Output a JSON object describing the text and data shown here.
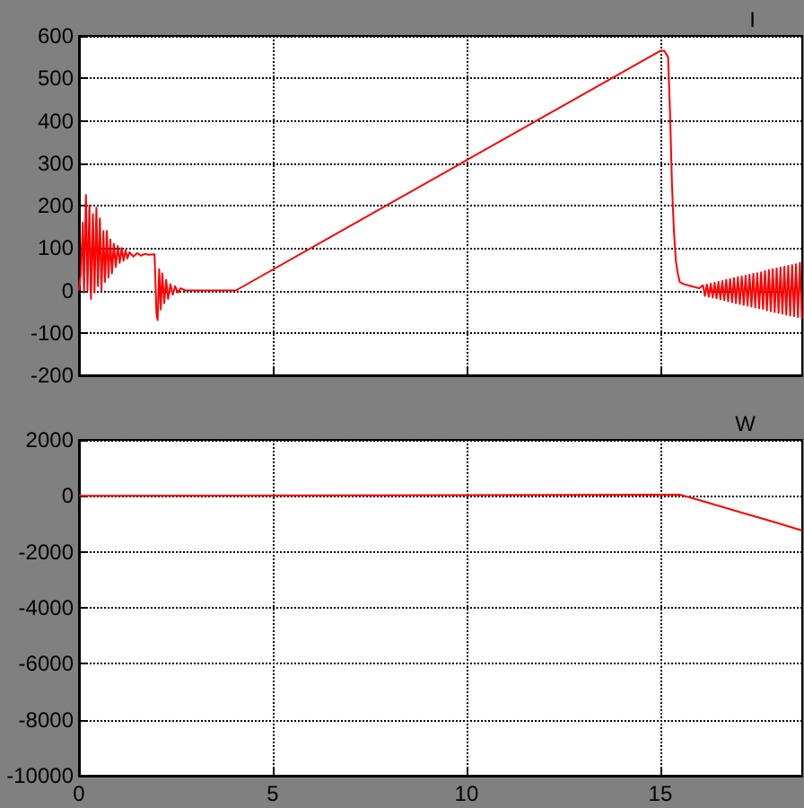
{
  "chart_data": [
    {
      "type": "line",
      "title": "I",
      "color": "#ff0000",
      "marker": "none",
      "grid": true,
      "tick_labels": "y",
      "x": [
        0,
        0.05,
        0.1,
        0.13,
        0.18,
        0.22,
        0.27,
        0.31,
        0.36,
        0.4,
        0.45,
        0.49,
        0.54,
        0.58,
        0.63,
        0.67,
        0.72,
        0.76,
        0.81,
        0.85,
        0.9,
        0.95,
        1.0,
        1.05,
        1.1,
        1.15,
        1.2,
        1.25,
        1.3,
        1.4,
        1.5,
        1.6,
        1.7,
        1.8,
        1.95,
        2.0,
        2.03,
        2.07,
        2.11,
        2.15,
        2.2,
        2.25,
        2.3,
        2.36,
        2.42,
        2.48,
        2.55,
        2.62,
        2.75,
        4.05,
        15.0,
        15.1,
        15.2,
        15.25,
        15.3,
        15.35,
        15.4,
        15.45,
        15.5,
        15.6,
        15.8,
        16.0,
        16.1,
        16.15,
        16.2,
        16.25,
        16.3,
        16.35,
        16.4,
        16.45,
        16.5,
        16.55,
        16.6,
        16.65,
        16.7,
        16.75,
        16.8,
        16.85,
        16.9,
        16.95,
        17.0,
        17.05,
        17.1,
        17.15,
        17.2,
        17.25,
        17.3,
        17.35,
        17.4,
        17.45,
        17.5,
        17.55,
        17.6,
        17.65,
        17.7,
        17.75,
        17.8,
        17.85,
        17.9,
        17.95,
        18.0,
        18.05,
        18.1,
        18.15,
        18.2,
        18.25,
        18.3,
        18.35,
        18.4,
        18.45,
        18.5,
        18.55,
        18.6,
        18.65
      ],
      "values": [
        0,
        40,
        160,
        -5,
        225,
        0,
        200,
        -20,
        180,
        -5,
        195,
        10,
        170,
        0,
        140,
        20,
        140,
        30,
        120,
        40,
        110,
        55,
        105,
        65,
        100,
        70,
        95,
        75,
        90,
        80,
        88,
        82,
        86,
        84,
        85,
        -55,
        -70,
        50,
        -45,
        40,
        -30,
        25,
        -20,
        15,
        -10,
        10,
        -5,
        5,
        0,
        0,
        565,
        565,
        550,
        420,
        250,
        140,
        70,
        40,
        20,
        15,
        10,
        5,
        12,
        -13,
        14,
        -15,
        16,
        -17,
        18,
        -19,
        20,
        -21,
        22,
        -23,
        25,
        -26,
        27,
        -28,
        29,
        -30,
        31,
        -32,
        33,
        -34,
        35,
        -36,
        37,
        -38,
        39,
        -40,
        41,
        -42,
        43,
        -44,
        46,
        -47,
        48,
        -49,
        50,
        -51,
        52,
        -53,
        54,
        -55,
        56,
        -57,
        58,
        -59,
        60,
        -61,
        62,
        -63,
        65,
        -66
      ],
      "xlim": [
        0,
        18.66
      ],
      "xticks": [
        0,
        5,
        10,
        15
      ],
      "ylim": [
        -200,
        600
      ],
      "yticks": [
        -200,
        -100,
        0,
        100,
        200,
        300,
        400,
        500,
        600
      ]
    },
    {
      "type": "line",
      "title": "W",
      "color": "#ff0000",
      "marker": "none",
      "grid": true,
      "x": [
        0,
        0.8,
        0.8,
        15.5,
        16.0,
        17.0,
        18.0,
        18.66
      ],
      "values": [
        0,
        0,
        40,
        40,
        -150,
        -560,
        -960,
        -1240
      ],
      "xlim": [
        0,
        18.66
      ],
      "xticks": [
        0,
        5,
        10,
        15
      ],
      "ylim": [
        -10000,
        2000
      ],
      "yticks": [
        -10000,
        -8000,
        -6000,
        -4000,
        -2000,
        0,
        2000
      ]
    }
  ]
}
